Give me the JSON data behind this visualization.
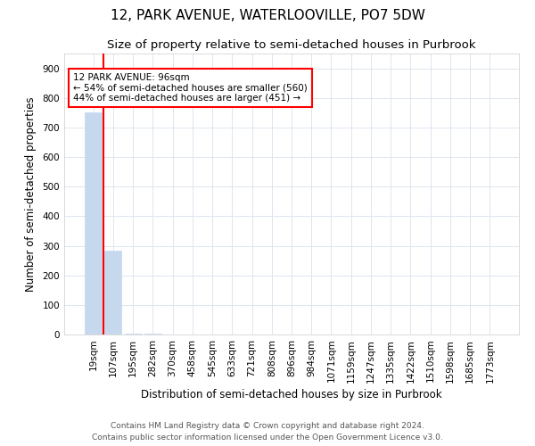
{
  "title": "12, PARK AVENUE, WATERLOOVILLE, PO7 5DW",
  "subtitle": "Size of property relative to semi-detached houses in Purbrook",
  "xlabel": "Distribution of semi-detached houses by size in Purbrook",
  "ylabel": "Number of semi-detached properties",
  "footer1": "Contains HM Land Registry data © Crown copyright and database right 2024.",
  "footer2": "Contains public sector information licensed under the Open Government Licence v3.0.",
  "categories": [
    "19sqm",
    "107sqm",
    "195sqm",
    "282sqm",
    "370sqm",
    "458sqm",
    "545sqm",
    "633sqm",
    "721sqm",
    "808sqm",
    "896sqm",
    "984sqm",
    "1071sqm",
    "1159sqm",
    "1247sqm",
    "1335sqm",
    "1422sqm",
    "1510sqm",
    "1598sqm",
    "1685sqm",
    "1773sqm"
  ],
  "values": [
    750,
    285,
    4,
    2,
    1,
    1,
    0,
    0,
    0,
    0,
    0,
    0,
    0,
    0,
    0,
    0,
    0,
    0,
    0,
    0,
    0
  ],
  "bar_color": "#c5d8ee",
  "bar_edge_color": "#c5d8ee",
  "subject_line_color": "red",
  "annotation_text": "12 PARK AVENUE: 96sqm\n← 54% of semi-detached houses are smaller (560)\n44% of semi-detached houses are larger (451) →",
  "annotation_box_color": "white",
  "annotation_box_edgecolor": "red",
  "ylim": [
    0,
    950
  ],
  "yticks": [
    0,
    100,
    200,
    300,
    400,
    500,
    600,
    700,
    800,
    900
  ],
  "grid_color": "#dde5f0",
  "background_color": "white",
  "title_fontsize": 11,
  "subtitle_fontsize": 9.5,
  "axis_label_fontsize": 8.5,
  "tick_fontsize": 7.5,
  "footer_fontsize": 6.5,
  "annotation_fontsize": 7.5
}
